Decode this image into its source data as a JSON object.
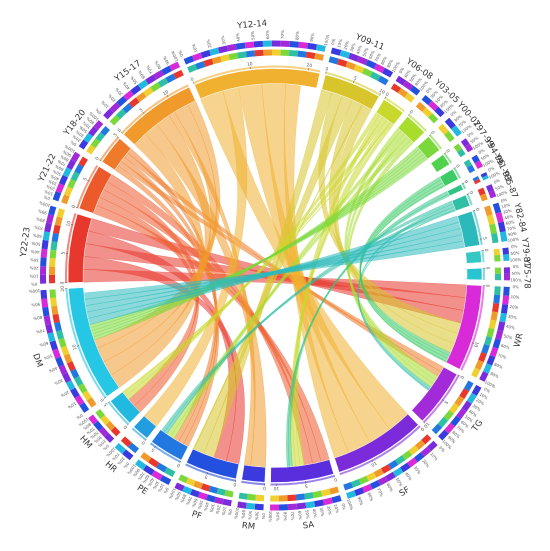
{
  "chart_data": {
    "type": "chord",
    "title": "",
    "percent_ticks": [
      "0%",
      "10%",
      "20%",
      "30%",
      "40%",
      "50%",
      "60%",
      "70%",
      "80%",
      "90%",
      "100%"
    ],
    "segments": [
      {
        "label": "Y22-23",
        "group": "period",
        "value": 12,
        "color": "#e8372c"
      },
      {
        "label": "Y21-22",
        "group": "period",
        "value": 8,
        "color": "#ec5a2c"
      },
      {
        "label": "Y18-20",
        "group": "period",
        "value": 5,
        "color": "#ef7b2a"
      },
      {
        "label": "Y15-17",
        "group": "period",
        "value": 14,
        "color": "#f19a2c"
      },
      {
        "label": "Y12-14",
        "group": "period",
        "value": 22,
        "color": "#f0b030"
      },
      {
        "label": "Y09-11",
        "group": "period",
        "value": 10,
        "color": "#d7c52b"
      },
      {
        "label": "Y06-08",
        "group": "period",
        "value": 4,
        "color": "#c9d82c"
      },
      {
        "label": "Y03-05",
        "group": "period",
        "value": 4,
        "color": "#a8dd2e"
      },
      {
        "label": "Y00-02",
        "group": "period",
        "value": 3,
        "color": "#7ad83a"
      },
      {
        "label": "Y97-99",
        "group": "period",
        "value": 2,
        "color": "#4fd24c"
      },
      {
        "label": "Y94-96",
        "group": "period",
        "value": 2,
        "color": "#3ccb67"
      },
      {
        "label": "Y91-93",
        "group": "period",
        "value": 1,
        "color": "#32c487"
      },
      {
        "label": "Y85-87",
        "group": "period",
        "value": 2,
        "color": "#2ebfa4"
      },
      {
        "label": "Y82-84",
        "group": "period",
        "value": 6,
        "color": "#2bb9bb"
      },
      {
        "label": "Y79-81",
        "group": "period",
        "value": 2,
        "color": "#34c7c4"
      },
      {
        "label": "Y75-78",
        "group": "period",
        "value": 2,
        "color": "#29c4d2"
      },
      {
        "label": "WR",
        "group": "category",
        "value": 15,
        "color": "#d82ad8"
      },
      {
        "label": "TG",
        "group": "category",
        "value": 10,
        "color": "#a22ad9"
      },
      {
        "label": "SF",
        "group": "category",
        "value": 16,
        "color": "#7c2bdb"
      },
      {
        "label": "SA",
        "group": "category",
        "value": 11,
        "color": "#5a2edd"
      },
      {
        "label": "RM",
        "group": "category",
        "value": 4,
        "color": "#3b3ade"
      },
      {
        "label": "PF",
        "group": "category",
        "value": 9,
        "color": "#2450e0"
      },
      {
        "label": "PE",
        "group": "category",
        "value": 6,
        "color": "#2277e0"
      },
      {
        "label": "HR",
        "group": "category",
        "value": 3,
        "color": "#229ee0"
      },
      {
        "label": "HM",
        "group": "category",
        "value": 5,
        "color": "#22b9e0"
      },
      {
        "label": "DM",
        "group": "category",
        "value": 20,
        "color": "#25c7e4"
      }
    ]
  }
}
